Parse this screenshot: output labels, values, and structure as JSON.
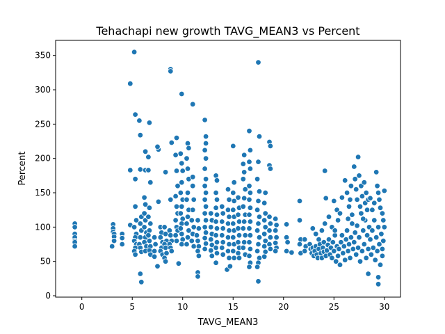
{
  "chart_data": {
    "type": "scatter",
    "title": "Tehachapi new growth TAVG_MEAN3 vs Percent",
    "xlabel": "TAVG_MEAN3",
    "ylabel": "Percent",
    "xlim": [
      -2.6,
      31.6
    ],
    "ylim": [
      -2,
      372
    ],
    "xticks": [
      0,
      5,
      10,
      15,
      20,
      25,
      30
    ],
    "yticks": [
      0,
      50,
      100,
      150,
      200,
      250,
      300,
      350
    ],
    "grid": false,
    "color": "#1f77b4",
    "points": [
      [
        -0.7,
        105
      ],
      [
        -0.7,
        100
      ],
      [
        -0.7,
        90
      ],
      [
        -0.7,
        85
      ],
      [
        -0.7,
        80
      ],
      [
        -0.7,
        78
      ],
      [
        -0.7,
        72
      ],
      [
        3.1,
        104
      ],
      [
        3.1,
        98
      ],
      [
        3.1,
        93
      ],
      [
        3.2,
        90
      ],
      [
        3.2,
        86
      ],
      [
        3.2,
        80
      ],
      [
        3.0,
        72
      ],
      [
        4.0,
        90
      ],
      [
        4.0,
        84
      ],
      [
        4.0,
        75
      ],
      [
        4.8,
        183
      ],
      [
        4.8,
        309
      ],
      [
        4.8,
        103
      ],
      [
        5.2,
        355
      ],
      [
        5.3,
        264
      ],
      [
        5.3,
        170
      ],
      [
        5.3,
        130
      ],
      [
        5.4,
        110
      ],
      [
        5.2,
        100
      ],
      [
        5.4,
        90
      ],
      [
        5.3,
        85
      ],
      [
        5.2,
        80
      ],
      [
        5.4,
        75
      ],
      [
        5.3,
        70
      ],
      [
        5.2,
        65
      ],
      [
        5.3,
        60
      ],
      [
        5.7,
        255
      ],
      [
        5.8,
        234
      ],
      [
        5.8,
        184
      ],
      [
        5.9,
        115
      ],
      [
        5.8,
        105
      ],
      [
        5.9,
        95
      ],
      [
        5.8,
        85
      ],
      [
        5.7,
        75
      ],
      [
        5.8,
        70
      ],
      [
        5.9,
        64
      ],
      [
        5.8,
        32
      ],
      [
        5.9,
        20
      ],
      [
        6.3,
        210
      ],
      [
        6.3,
        183
      ],
      [
        6.2,
        143
      ],
      [
        6.3,
        133
      ],
      [
        6.2,
        120
      ],
      [
        6.3,
        110
      ],
      [
        6.2,
        100
      ],
      [
        6.4,
        92
      ],
      [
        6.3,
        85
      ],
      [
        6.2,
        78
      ],
      [
        6.4,
        72
      ],
      [
        6.3,
        65
      ],
      [
        6.7,
        252
      ],
      [
        6.6,
        202
      ],
      [
        6.6,
        183
      ],
      [
        6.8,
        165
      ],
      [
        6.7,
        128
      ],
      [
        6.6,
        115
      ],
      [
        6.8,
        105
      ],
      [
        6.7,
        95
      ],
      [
        6.6,
        88
      ],
      [
        6.7,
        80
      ],
      [
        6.8,
        72
      ],
      [
        6.7,
        66
      ],
      [
        6.8,
        60
      ],
      [
        7.2,
        85
      ],
      [
        7.3,
        75
      ],
      [
        7.2,
        65
      ],
      [
        7.2,
        57
      ],
      [
        7.5,
        43
      ],
      [
        7.6,
        213
      ],
      [
        7.5,
        217
      ],
      [
        7.6,
        137
      ],
      [
        7.8,
        100
      ],
      [
        7.9,
        92
      ],
      [
        7.8,
        85
      ],
      [
        8.0,
        78
      ],
      [
        7.9,
        70
      ],
      [
        7.8,
        65
      ],
      [
        8.0,
        60
      ],
      [
        8.3,
        180
      ],
      [
        8.2,
        100
      ],
      [
        8.3,
        90
      ],
      [
        8.4,
        80
      ],
      [
        8.2,
        75
      ],
      [
        8.3,
        70
      ],
      [
        8.4,
        62
      ],
      [
        8.2,
        55
      ],
      [
        8.3,
        50
      ],
      [
        8.8,
        330
      ],
      [
        8.8,
        327
      ],
      [
        8.9,
        223
      ],
      [
        8.8,
        140
      ],
      [
        8.7,
        95
      ],
      [
        8.8,
        88
      ],
      [
        8.9,
        80
      ],
      [
        8.7,
        75
      ],
      [
        8.8,
        70
      ],
      [
        8.9,
        65
      ],
      [
        9.4,
        230
      ],
      [
        9.3,
        205
      ],
      [
        9.4,
        182
      ],
      [
        9.5,
        160
      ],
      [
        9.3,
        145
      ],
      [
        9.4,
        130
      ],
      [
        9.5,
        120
      ],
      [
        9.3,
        110
      ],
      [
        9.4,
        100
      ],
      [
        9.5,
        95
      ],
      [
        9.3,
        88
      ],
      [
        9.4,
        80
      ],
      [
        9.6,
        47
      ],
      [
        9.9,
        294
      ],
      [
        9.8,
        207
      ],
      [
        9.9,
        193
      ],
      [
        10.0,
        182
      ],
      [
        9.9,
        165
      ],
      [
        9.8,
        150
      ],
      [
        10.0,
        140
      ],
      [
        9.9,
        130
      ],
      [
        9.8,
        120
      ],
      [
        10.0,
        112
      ],
      [
        9.9,
        105
      ],
      [
        9.8,
        98
      ],
      [
        9.9,
        90
      ],
      [
        10.0,
        82
      ],
      [
        9.9,
        75
      ],
      [
        10.5,
        222
      ],
      [
        10.6,
        215
      ],
      [
        10.4,
        200
      ],
      [
        10.5,
        185
      ],
      [
        10.6,
        170
      ],
      [
        10.5,
        150
      ],
      [
        10.4,
        140
      ],
      [
        10.6,
        125
      ],
      [
        10.5,
        115
      ],
      [
        10.4,
        105
      ],
      [
        10.6,
        95
      ],
      [
        10.5,
        85
      ],
      [
        10.4,
        75
      ],
      [
        11.0,
        279
      ],
      [
        11.0,
        173
      ],
      [
        11.0,
        160
      ],
      [
        11.1,
        140
      ],
      [
        11.0,
        125
      ],
      [
        10.9,
        110
      ],
      [
        11.1,
        100
      ],
      [
        11.0,
        90
      ],
      [
        10.9,
        80
      ],
      [
        11.1,
        72
      ],
      [
        11.5,
        110
      ],
      [
        11.6,
        98
      ],
      [
        11.4,
        88
      ],
      [
        11.5,
        80
      ],
      [
        11.6,
        72
      ],
      [
        11.5,
        65
      ],
      [
        11.6,
        58
      ],
      [
        11.5,
        34
      ],
      [
        11.5,
        28
      ],
      [
        12.2,
        256
      ],
      [
        12.3,
        232
      ],
      [
        12.3,
        222
      ],
      [
        12.2,
        212
      ],
      [
        12.3,
        200
      ],
      [
        12.2,
        185
      ],
      [
        12.3,
        170
      ],
      [
        12.2,
        160
      ],
      [
        12.3,
        150
      ],
      [
        12.2,
        140
      ],
      [
        12.3,
        130
      ],
      [
        12.2,
        120
      ],
      [
        12.3,
        110
      ],
      [
        12.2,
        100
      ],
      [
        12.3,
        92
      ],
      [
        12.2,
        84
      ],
      [
        12.3,
        76
      ],
      [
        12.2,
        68
      ],
      [
        12.8,
        120
      ],
      [
        12.9,
        110
      ],
      [
        12.8,
        100
      ],
      [
        12.9,
        90
      ],
      [
        12.8,
        82
      ],
      [
        12.9,
        74
      ],
      [
        12.8,
        66
      ],
      [
        12.9,
        58
      ],
      [
        13.3,
        175
      ],
      [
        13.4,
        168
      ],
      [
        13.3,
        150
      ],
      [
        13.4,
        140
      ],
      [
        13.3,
        128
      ],
      [
        13.4,
        118
      ],
      [
        13.3,
        108
      ],
      [
        13.4,
        98
      ],
      [
        13.3,
        88
      ],
      [
        13.4,
        78
      ],
      [
        13.3,
        70
      ],
      [
        13.4,
        62
      ],
      [
        13.3,
        48
      ],
      [
        13.9,
        130
      ],
      [
        14.0,
        120
      ],
      [
        13.9,
        108
      ],
      [
        14.0,
        98
      ],
      [
        13.9,
        88
      ],
      [
        14.0,
        78
      ],
      [
        13.9,
        70
      ],
      [
        14.0,
        60
      ],
      [
        14.5,
        155
      ],
      [
        14.6,
        140
      ],
      [
        14.5,
        125
      ],
      [
        14.6,
        115
      ],
      [
        14.5,
        105
      ],
      [
        14.6,
        95
      ],
      [
        14.5,
        85
      ],
      [
        14.6,
        75
      ],
      [
        14.5,
        65
      ],
      [
        14.6,
        55
      ],
      [
        14.4,
        38
      ],
      [
        14.7,
        43
      ],
      [
        15.0,
        218
      ],
      [
        15.1,
        165
      ],
      [
        15.0,
        150
      ],
      [
        15.1,
        138
      ],
      [
        15.0,
        125
      ],
      [
        15.1,
        115
      ],
      [
        15.0,
        105
      ],
      [
        15.1,
        95
      ],
      [
        15.0,
        85
      ],
      [
        15.1,
        75
      ],
      [
        15.0,
        65
      ],
      [
        15.1,
        55
      ],
      [
        15.5,
        143
      ],
      [
        15.6,
        128
      ],
      [
        15.5,
        118
      ],
      [
        15.6,
        108
      ],
      [
        15.5,
        98
      ],
      [
        15.6,
        88
      ],
      [
        15.5,
        78
      ],
      [
        15.6,
        70
      ],
      [
        15.5,
        62
      ],
      [
        15.6,
        55
      ],
      [
        16.1,
        205
      ],
      [
        16.0,
        192
      ],
      [
        16.1,
        180
      ],
      [
        16.0,
        170
      ],
      [
        16.2,
        155
      ],
      [
        16.1,
        142
      ],
      [
        16.0,
        130
      ],
      [
        16.2,
        118
      ],
      [
        16.1,
        108
      ],
      [
        16.0,
        98
      ],
      [
        16.2,
        88
      ],
      [
        16.1,
        78
      ],
      [
        16.0,
        70
      ],
      [
        16.2,
        60
      ],
      [
        16.6,
        240
      ],
      [
        16.7,
        212
      ],
      [
        16.6,
        195
      ],
      [
        16.7,
        185
      ],
      [
        16.6,
        160
      ],
      [
        16.7,
        150
      ],
      [
        16.6,
        140
      ],
      [
        16.7,
        128
      ],
      [
        16.6,
        118
      ],
      [
        16.7,
        108
      ],
      [
        16.6,
        98
      ],
      [
        16.7,
        88
      ],
      [
        16.6,
        78
      ],
      [
        16.7,
        68
      ],
      [
        16.6,
        58
      ],
      [
        16.7,
        48
      ],
      [
        16.6,
        42
      ],
      [
        17.5,
        340
      ],
      [
        17.6,
        232
      ],
      [
        17.5,
        195
      ],
      [
        17.4,
        170
      ],
      [
        17.6,
        152
      ],
      [
        17.5,
        138
      ],
      [
        17.4,
        125
      ],
      [
        17.6,
        115
      ],
      [
        17.5,
        105
      ],
      [
        17.4,
        95
      ],
      [
        17.6,
        85
      ],
      [
        17.5,
        75
      ],
      [
        17.4,
        65
      ],
      [
        17.6,
        55
      ],
      [
        17.5,
        48
      ],
      [
        17.4,
        42
      ],
      [
        17.5,
        21
      ],
      [
        18.2,
        150
      ],
      [
        18.1,
        135
      ],
      [
        18.2,
        120
      ],
      [
        18.1,
        110
      ],
      [
        18.2,
        100
      ],
      [
        18.1,
        90
      ],
      [
        18.2,
        80
      ],
      [
        18.1,
        72
      ],
      [
        18.2,
        64
      ],
      [
        18.1,
        57
      ],
      [
        18.6,
        224
      ],
      [
        18.7,
        218
      ],
      [
        18.6,
        190
      ],
      [
        18.7,
        185
      ],
      [
        18.6,
        115
      ],
      [
        18.7,
        105
      ],
      [
        18.6,
        95
      ],
      [
        18.7,
        85
      ],
      [
        18.6,
        75
      ],
      [
        18.7,
        68
      ],
      [
        19.2,
        112
      ],
      [
        19.3,
        103
      ],
      [
        19.2,
        95
      ],
      [
        19.3,
        85
      ],
      [
        19.2,
        77
      ],
      [
        19.3,
        70
      ],
      [
        19.2,
        65
      ],
      [
        20.3,
        104
      ],
      [
        20.3,
        85
      ],
      [
        20.4,
        78
      ],
      [
        20.3,
        65
      ],
      [
        20.8,
        63
      ],
      [
        21.6,
        138
      ],
      [
        21.6,
        110
      ],
      [
        21.7,
        82
      ],
      [
        21.6,
        75
      ],
      [
        21.7,
        62
      ],
      [
        22.1,
        82
      ],
      [
        22.2,
        72
      ],
      [
        22.1,
        65
      ],
      [
        22.6,
        75
      ],
      [
        22.7,
        68
      ],
      [
        22.8,
        62
      ],
      [
        22.9,
        70
      ],
      [
        23.0,
        58
      ],
      [
        23.1,
        65
      ],
      [
        23.2,
        72
      ],
      [
        23.3,
        60
      ],
      [
        23.4,
        55
      ],
      [
        23.5,
        68
      ],
      [
        23.6,
        75
      ],
      [
        23.7,
        62
      ],
      [
        23.8,
        55
      ],
      [
        23.9,
        70
      ],
      [
        24.0,
        64
      ],
      [
        22.9,
        98
      ],
      [
        23.2,
        90
      ],
      [
        23.5,
        82
      ],
      [
        23.8,
        95
      ],
      [
        24.1,
        105
      ],
      [
        24.2,
        142
      ],
      [
        24.1,
        182
      ],
      [
        24.0,
        78
      ],
      [
        24.2,
        58
      ],
      [
        24.3,
        66
      ],
      [
        24.4,
        74
      ],
      [
        24.5,
        82
      ],
      [
        24.6,
        60
      ],
      [
        24.7,
        70
      ],
      [
        24.8,
        55
      ],
      [
        24.9,
        78
      ],
      [
        25.0,
        65
      ],
      [
        25.1,
        88
      ],
      [
        25.2,
        50
      ],
      [
        25.3,
        72
      ],
      [
        24.5,
        115
      ],
      [
        24.8,
        100
      ],
      [
        25.0,
        138
      ],
      [
        25.3,
        125
      ],
      [
        25.1,
        95
      ],
      [
        25.4,
        110
      ],
      [
        25.4,
        58
      ],
      [
        25.5,
        68
      ],
      [
        25.6,
        45
      ],
      [
        25.7,
        78
      ],
      [
        25.8,
        88
      ],
      [
        25.9,
        62
      ],
      [
        26.0,
        72
      ],
      [
        26.1,
        52
      ],
      [
        26.2,
        82
      ],
      [
        26.3,
        95
      ],
      [
        26.4,
        65
      ],
      [
        26.5,
        75
      ],
      [
        26.6,
        55
      ],
      [
        26.7,
        85
      ],
      [
        26.8,
        105
      ],
      [
        26.9,
        68
      ],
      [
        25.8,
        143
      ],
      [
        25.6,
        120
      ],
      [
        26.1,
        168
      ],
      [
        26.3,
        150
      ],
      [
        26.5,
        130
      ],
      [
        26.7,
        160
      ],
      [
        26.8,
        118
      ],
      [
        26.6,
        140
      ],
      [
        26.4,
        112
      ],
      [
        27.0,
        78
      ],
      [
        27.1,
        92
      ],
      [
        27.2,
        60
      ],
      [
        27.3,
        102
      ],
      [
        27.4,
        70
      ],
      [
        27.5,
        85
      ],
      [
        27.6,
        50
      ],
      [
        27.7,
        120
      ],
      [
        27.8,
        65
      ],
      [
        27.9,
        95
      ],
      [
        28.0,
        75
      ],
      [
        28.1,
        110
      ],
      [
        28.2,
        55
      ],
      [
        28.3,
        88
      ],
      [
        28.4,
        68
      ],
      [
        28.5,
        100
      ],
      [
        27.0,
        188
      ],
      [
        27.1,
        170
      ],
      [
        27.2,
        155
      ],
      [
        27.3,
        140
      ],
      [
        27.4,
        202
      ],
      [
        27.5,
        175
      ],
      [
        27.6,
        130
      ],
      [
        27.7,
        160
      ],
      [
        27.8,
        145
      ],
      [
        27.9,
        112
      ],
      [
        28.0,
        165
      ],
      [
        28.1,
        135
      ],
      [
        28.2,
        150
      ],
      [
        28.3,
        125
      ],
      [
        28.4,
        140
      ],
      [
        28.6,
        82
      ],
      [
        28.7,
        60
      ],
      [
        28.8,
        95
      ],
      [
        28.9,
        70
      ],
      [
        29.0,
        110
      ],
      [
        29.1,
        52
      ],
      [
        29.2,
        85
      ],
      [
        29.3,
        65
      ],
      [
        29.4,
        100
      ],
      [
        29.5,
        75
      ],
      [
        29.6,
        45
      ],
      [
        29.7,
        90
      ],
      [
        29.8,
        58
      ],
      [
        29.9,
        80
      ],
      [
        29.8,
        68
      ],
      [
        28.6,
        142
      ],
      [
        28.8,
        125
      ],
      [
        29.0,
        135
      ],
      [
        29.2,
        180
      ],
      [
        29.3,
        160
      ],
      [
        29.4,
        150
      ],
      [
        29.5,
        140
      ],
      [
        29.6,
        128
      ],
      [
        29.8,
        120
      ],
      [
        30.0,
        153
      ],
      [
        30.0,
        100
      ],
      [
        29.9,
        110
      ],
      [
        28.4,
        32
      ],
      [
        29.4,
        27
      ],
      [
        29.4,
        17
      ]
    ]
  }
}
